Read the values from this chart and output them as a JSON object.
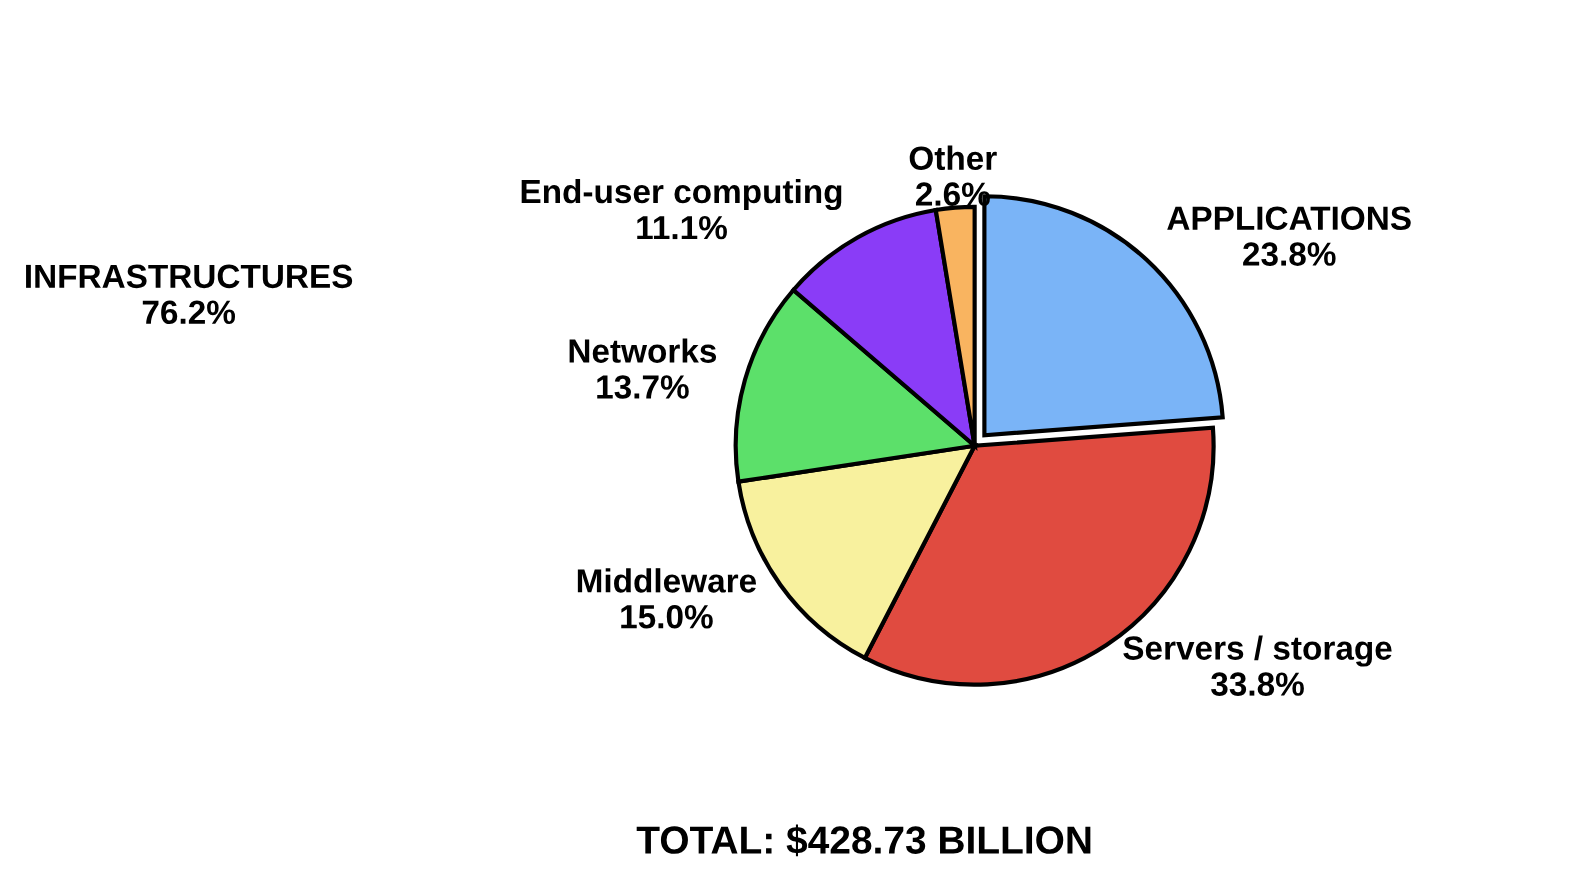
{
  "chart_data": {
    "type": "pie",
    "categories": [
      "APPLICATIONS",
      "Servers / storage",
      "Middleware",
      "Networks",
      "End-user computing",
      "Other"
    ],
    "values": [
      23.8,
      33.8,
      15.0,
      13.7,
      11.1,
      2.6
    ],
    "value_labels": [
      "23.8%",
      "33.8%",
      "15.0%",
      "13.7%",
      "11.1%",
      "2.6%"
    ],
    "colors": [
      "#7ab4f7",
      "#e04b40",
      "#f8f19e",
      "#5ce06a",
      "#8a3cf7",
      "#f9b460"
    ],
    "annotations": [
      "INFRASTRUCTURES\n76.2%",
      "TOTAL: $428.73 BILLION"
    ],
    "legend": false
  }
}
